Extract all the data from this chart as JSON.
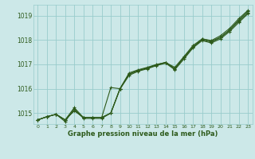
{
  "background_color": "#cce8e8",
  "grid_color": "#99cccc",
  "line_color": "#2d5a1b",
  "text_color": "#2d5a1b",
  "xlabel": "Graphe pression niveau de la mer (hPa)",
  "xlim": [
    -0.5,
    23.5
  ],
  "ylim": [
    1014.55,
    1019.45
  ],
  "yticks": [
    1015,
    1016,
    1017,
    1018,
    1019
  ],
  "xticks": [
    0,
    1,
    2,
    3,
    4,
    5,
    6,
    7,
    8,
    9,
    10,
    11,
    12,
    13,
    14,
    15,
    16,
    17,
    18,
    19,
    20,
    21,
    22,
    23
  ],
  "series": [
    [
      1014.72,
      1014.85,
      1014.95,
      1014.72,
      1015.1,
      1014.82,
      1014.82,
      1014.82,
      1015.0,
      1016.0,
      1016.65,
      1016.78,
      1016.88,
      1017.0,
      1017.08,
      1016.82,
      1017.28,
      1017.72,
      1018.05,
      1017.95,
      1018.12,
      1018.42,
      1018.82,
      1019.18
    ],
    [
      1014.72,
      1014.85,
      1014.95,
      1014.72,
      1015.22,
      1014.82,
      1014.82,
      1014.82,
      1015.0,
      1016.0,
      1016.6,
      1016.75,
      1016.85,
      1016.98,
      1017.08,
      1016.82,
      1017.28,
      1017.72,
      1018.0,
      1017.92,
      1018.1,
      1018.4,
      1018.78,
      1019.12
    ],
    [
      1014.72,
      1014.85,
      1014.95,
      1014.72,
      1015.1,
      1014.82,
      1014.82,
      1014.82,
      1016.05,
      1016.0,
      1016.6,
      1016.75,
      1016.85,
      1016.98,
      1017.08,
      1016.88,
      1017.32,
      1017.78,
      1018.05,
      1017.98,
      1018.18,
      1018.48,
      1018.88,
      1019.22
    ],
    [
      1014.72,
      1014.85,
      1014.95,
      1014.65,
      1015.18,
      1014.78,
      1014.78,
      1014.78,
      1015.0,
      1015.98,
      1016.55,
      1016.72,
      1016.82,
      1016.95,
      1017.05,
      1016.78,
      1017.22,
      1017.68,
      1017.98,
      1017.88,
      1018.05,
      1018.35,
      1018.72,
      1019.08
    ]
  ]
}
